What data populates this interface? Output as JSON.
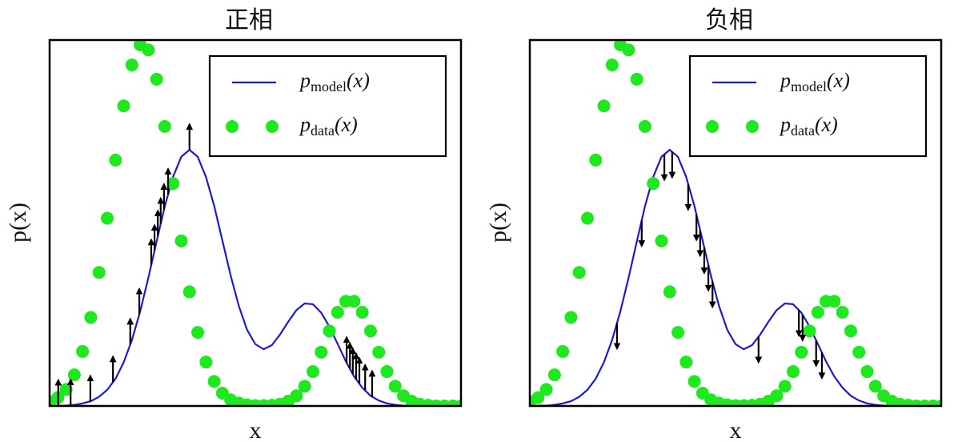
{
  "chart_data": [
    {
      "type": "line",
      "title": "正相",
      "xlabel": "x",
      "ylabel": "p(x)",
      "xlim": [
        0,
        10
      ],
      "ylim": [
        0,
        1
      ],
      "legend": "upper right",
      "x": [
        0,
        0.2,
        0.4,
        0.6,
        0.8,
        1.0,
        1.2,
        1.4,
        1.6,
        1.8,
        2.0,
        2.2,
        2.4,
        2.6,
        2.8,
        3.0,
        3.2,
        3.4,
        3.6,
        3.8,
        4.0,
        4.2,
        4.4,
        4.6,
        4.8,
        5.0,
        5.2,
        5.4,
        5.6,
        5.8,
        6.0,
        6.2,
        6.4,
        6.6,
        6.8,
        7.0,
        7.2,
        7.4,
        7.6,
        7.8,
        8.0,
        8.2,
        8.4,
        8.6,
        8.8,
        9.0,
        9.2,
        9.4,
        9.6,
        9.8,
        10.0
      ],
      "series": [
        {
          "name": "p",
          "name_subscript": "model",
          "name_suffix": "(x)",
          "color": "#1c1ccf",
          "style": "line",
          "values": [
            0,
            0.001,
            0.001,
            0.003,
            0.007,
            0.013,
            0.025,
            0.044,
            0.074,
            0.119,
            0.18,
            0.258,
            0.35,
            0.449,
            0.546,
            0.626,
            0.681,
            0.7,
            0.681,
            0.626,
            0.547,
            0.452,
            0.357,
            0.273,
            0.208,
            0.169,
            0.155,
            0.166,
            0.195,
            0.23,
            0.262,
            0.28,
            0.278,
            0.255,
            0.217,
            0.17,
            0.122,
            0.081,
            0.05,
            0.028,
            0.015,
            0.007,
            0.003,
            0.001,
            0,
            0,
            0,
            0,
            0,
            0,
            0
          ]
        },
        {
          "name": "p",
          "name_subscript": "data",
          "name_suffix": "(x)",
          "color": "#1ee81e",
          "style": "dots",
          "values": [
            0.011,
            0.023,
            0.045,
            0.085,
            0.149,
            0.242,
            0.365,
            0.513,
            0.672,
            0.82,
            0.932,
            0.987,
            0.973,
            0.893,
            0.764,
            0.608,
            0.451,
            0.312,
            0.201,
            0.12,
            0.067,
            0.035,
            0.017,
            0.008,
            0.003,
            0.001,
            0.001,
            0.002,
            0.005,
            0.013,
            0.028,
            0.054,
            0.094,
            0.147,
            0.205,
            0.256,
            0.286,
            0.286,
            0.256,
            0.205,
            0.147,
            0.094,
            0.054,
            0.028,
            0.013,
            0.005,
            0.002,
            0,
            0,
            0,
            0
          ]
        }
      ],
      "samples": [
        0.21,
        0.51,
        0.99,
        1.54,
        1.96,
        2.18,
        2.47,
        2.55,
        2.63,
        2.7,
        2.78,
        2.88,
        3.4,
        7.22,
        7.3,
        7.37,
        7.45,
        7.53,
        7.67,
        7.84
      ],
      "arrow_direction": "up"
    },
    {
      "type": "line",
      "title": "负相",
      "xlabel": "x",
      "ylabel": "p(x)",
      "xlim": [
        0,
        10
      ],
      "ylim": [
        0,
        1
      ],
      "legend": "upper right",
      "x": [
        0,
        0.2,
        0.4,
        0.6,
        0.8,
        1.0,
        1.2,
        1.4,
        1.6,
        1.8,
        2.0,
        2.2,
        2.4,
        2.6,
        2.8,
        3.0,
        3.2,
        3.4,
        3.6,
        3.8,
        4.0,
        4.2,
        4.4,
        4.6,
        4.8,
        5.0,
        5.2,
        5.4,
        5.6,
        5.8,
        6.0,
        6.2,
        6.4,
        6.6,
        6.8,
        7.0,
        7.2,
        7.4,
        7.6,
        7.8,
        8.0,
        8.2,
        8.4,
        8.6,
        8.8,
        9.0,
        9.2,
        9.4,
        9.6,
        9.8,
        10.0
      ],
      "series": [
        {
          "name": "p",
          "name_subscript": "model",
          "name_suffix": "(x)",
          "color": "#1c1ccf",
          "style": "line",
          "values": [
            0,
            0.001,
            0.001,
            0.003,
            0.007,
            0.013,
            0.025,
            0.044,
            0.074,
            0.119,
            0.18,
            0.258,
            0.35,
            0.449,
            0.546,
            0.626,
            0.681,
            0.7,
            0.681,
            0.626,
            0.547,
            0.452,
            0.357,
            0.273,
            0.208,
            0.169,
            0.155,
            0.166,
            0.195,
            0.23,
            0.262,
            0.28,
            0.278,
            0.255,
            0.217,
            0.17,
            0.122,
            0.081,
            0.05,
            0.028,
            0.015,
            0.007,
            0.003,
            0.001,
            0,
            0,
            0,
            0,
            0,
            0,
            0
          ]
        },
        {
          "name": "p",
          "name_subscript": "data",
          "name_suffix": "(x)",
          "color": "#1ee81e",
          "style": "dots",
          "values": [
            0.011,
            0.023,
            0.045,
            0.085,
            0.149,
            0.242,
            0.365,
            0.513,
            0.672,
            0.82,
            0.932,
            0.987,
            0.973,
            0.893,
            0.764,
            0.608,
            0.451,
            0.312,
            0.201,
            0.12,
            0.067,
            0.035,
            0.017,
            0.008,
            0.003,
            0.001,
            0.001,
            0.002,
            0.005,
            0.013,
            0.028,
            0.054,
            0.094,
            0.147,
            0.205,
            0.256,
            0.286,
            0.286,
            0.256,
            0.205,
            0.147,
            0.094,
            0.054,
            0.028,
            0.013,
            0.005,
            0.002,
            0,
            0,
            0,
            0
          ]
        }
      ],
      "samples": [
        2.12,
        2.72,
        3.27,
        3.46,
        3.85,
        4.05,
        4.14,
        4.24,
        4.34,
        4.44,
        5.56,
        6.54,
        6.63,
        6.96,
        7.1
      ],
      "arrow_direction": "down"
    }
  ]
}
